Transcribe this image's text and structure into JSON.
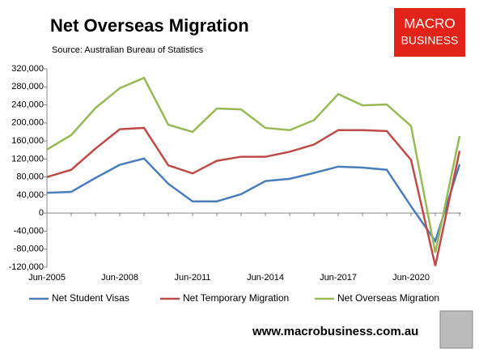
{
  "chart_data": {
    "type": "line",
    "title": "Net Overseas Migration",
    "subtitle": "Source: Australian Bureau of Statistics",
    "logo": [
      "MACRO",
      "BUSINESS"
    ],
    "footer": "www.macrobusiness.com.au",
    "categories": [
      "Jun-2005",
      null,
      null,
      "Jun-2008",
      null,
      null,
      "Jun-2011",
      null,
      null,
      "Jun-2014",
      null,
      null,
      "Jun-2017",
      null,
      null,
      "Jun-2020",
      null,
      null
    ],
    "series": [
      {
        "name": "Net Student Visas",
        "color": "#4a7ebb",
        "values": [
          45000,
          47000,
          78000,
          107000,
          121000,
          65000,
          26000,
          26000,
          42000,
          71000,
          76000,
          89000,
          103000,
          101000,
          96000,
          15000,
          -62000,
          108000
        ]
      },
      {
        "name": "Net Temporary Migration",
        "color": "#be4b48",
        "values": [
          80000,
          96000,
          143000,
          186000,
          189000,
          106000,
          88000,
          116000,
          125000,
          125000,
          136000,
          152000,
          184000,
          184000,
          182000,
          118000,
          -117000,
          138000
        ]
      },
      {
        "name": "Net Overseas Migration",
        "color": "#98b954",
        "values": [
          141000,
          173000,
          233000,
          277000,
          300000,
          196000,
          180000,
          232000,
          230000,
          189000,
          184000,
          206000,
          264000,
          239000,
          241000,
          193000,
          -88000,
          171000
        ]
      }
    ],
    "ylim": [
      -120000,
      320000
    ],
    "yticks": [
      {
        "value": -120000,
        "label": "-120,000"
      },
      {
        "value": -80000,
        "label": "-80,000"
      },
      {
        "value": -40000,
        "label": "-40,000"
      },
      0,
      {
        "value": 40000,
        "label": "40,000"
      },
      {
        "value": 80000,
        "label": "80,000"
      },
      {
        "value": 120000,
        "label": "120,000"
      },
      {
        "value": 160000,
        "label": "160,000"
      },
      {
        "value": 200000,
        "label": "200,000"
      },
      {
        "value": 240000,
        "label": "240,000"
      },
      {
        "value": 280000,
        "label": "280,000"
      },
      {
        "value": 320000,
        "label": "320,000"
      }
    ],
    "grid": false
  }
}
